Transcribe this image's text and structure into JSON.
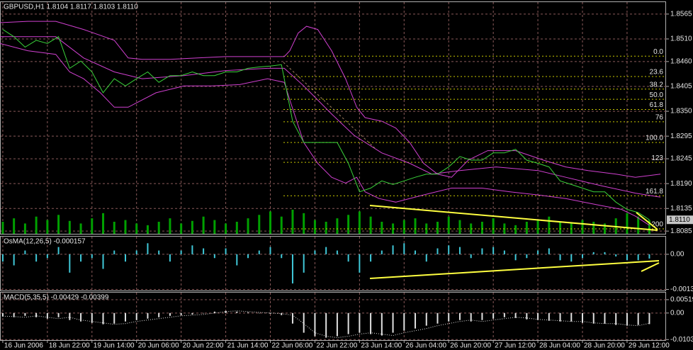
{
  "chart_data": [
    {
      "type": "line",
      "title": "GBPUSD,H1  1.8104 1.8117 1.8103 1.8110",
      "xlim": [
        0,
        239
      ],
      "xticks": [
        {
          "value": 1,
          "label": "16 Jun 2006"
        },
        {
          "value": 17,
          "label": "18 Jun 22:00"
        },
        {
          "value": 33,
          "label": "19 Jun 14:00"
        },
        {
          "value": 49,
          "label": "20 Jun 06:00"
        },
        {
          "value": 65,
          "label": "20 Jun 22:00"
        },
        {
          "value": 81,
          "label": "21 Jun 14:00"
        },
        {
          "value": 97,
          "label": "22 Jun 06:00"
        },
        {
          "value": 113,
          "label": "22 Jun 22:00"
        },
        {
          "value": 129,
          "label": "23 Jun 14:00"
        },
        {
          "value": 145,
          "label": "26 Jun 04:00"
        },
        {
          "value": 161,
          "label": "26 Jun 20:00"
        },
        {
          "value": 177,
          "label": "27 Jun 12:00"
        },
        {
          "value": 193,
          "label": "28 Jun 04:00"
        },
        {
          "value": 209,
          "label": "28 Jun 20:00"
        },
        {
          "value": 225,
          "label": "29 Jun 12:00"
        }
      ],
      "ylim": [
        1.8079,
        1.8593
      ],
      "yticks": [
        1.8565,
        {
          "value": 1.851,
          "label": "1.8510"
        },
        {
          "value": 1.846,
          "label": "1.8460"
        },
        1.8405,
        {
          "value": 1.835,
          "label": "1.8350"
        },
        1.8295,
        1.8245,
        {
          "value": 1.819,
          "label": "1.8190"
        },
        1.8135,
        1.8085
      ],
      "grid": true,
      "grid_color": "#8a5a5a",
      "x": [
        1,
        5,
        9,
        13,
        17,
        21,
        25,
        29,
        33,
        37,
        41,
        45,
        49,
        53,
        57,
        61,
        65,
        69,
        73,
        77,
        81,
        85,
        89,
        93,
        97,
        101,
        105,
        109,
        113,
        117,
        121,
        125,
        129,
        133,
        137,
        141,
        145,
        149,
        153,
        157,
        161,
        165,
        169,
        173,
        177,
        181,
        185,
        189,
        193,
        197,
        201,
        205,
        209,
        213,
        217,
        221,
        225,
        229,
        233
      ],
      "series": [
        {
          "color": "#d040d0",
          "x": [
            0,
            10,
            20,
            30,
            41,
            46,
            51,
            61,
            71,
            81,
            102,
            104,
            107,
            110,
            114,
            119,
            124,
            128,
            131,
            137,
            142,
            147,
            152,
            157,
            162,
            168,
            175,
            185,
            195,
            203,
            211,
            221,
            228,
            237
          ],
          "values": [
            1.8546,
            1.8549,
            1.8549,
            1.8531,
            1.8507,
            1.8468,
            1.8465,
            1.8465,
            1.8468,
            1.8471,
            1.8471,
            1.8484,
            1.8523,
            1.8538,
            1.8531,
            1.8484,
            1.8422,
            1.8359,
            1.8336,
            1.8328,
            1.8313,
            1.8281,
            1.8235,
            1.8211,
            1.8204,
            1.8242,
            1.8263,
            1.8263,
            1.8242,
            1.8227,
            1.8219,
            1.8211,
            1.8204,
            1.8211
          ]
        },
        {
          "color": "#d040d0",
          "x": [
            0,
            20,
            30,
            41,
            51,
            66,
            81,
            96,
            102,
            109,
            119,
            127,
            137,
            147,
            155,
            165,
            178,
            193,
            203,
            216,
            228,
            237
          ],
          "values": [
            1.8515,
            1.8515,
            1.8468,
            1.8437,
            1.8422,
            1.8429,
            1.844,
            1.8445,
            1.8445,
            1.8406,
            1.8344,
            1.8297,
            1.8258,
            1.8235,
            1.8211,
            1.8219,
            1.8227,
            1.8219,
            1.8204,
            1.8185,
            1.8169,
            1.816
          ]
        },
        {
          "color": "#d040d0",
          "x": [
            0,
            10,
            20,
            25,
            30,
            36,
            41,
            46,
            56,
            66,
            76,
            86,
            96,
            102,
            104,
            109,
            114,
            119,
            124,
            128,
            131,
            136,
            142,
            152,
            162,
            173,
            183,
            193,
            203,
            216,
            223,
            228,
            233
          ],
          "values": [
            1.85,
            1.8484,
            1.8476,
            1.8437,
            1.8422,
            1.8391,
            1.8359,
            1.8359,
            1.8391,
            1.8406,
            1.8406,
            1.8409,
            1.8422,
            1.8414,
            1.8375,
            1.8281,
            1.8235,
            1.8204,
            1.8191,
            1.8204,
            1.8172,
            1.8157,
            1.8149,
            1.8165,
            1.818,
            1.818,
            1.8172,
            1.8165,
            1.8157,
            1.8141,
            1.8133,
            1.8118,
            1.8098
          ]
        },
        {
          "color": "#3ad23a",
          "values": [
            1.8531,
            1.8515,
            1.8492,
            1.8507,
            1.85,
            1.8515,
            1.8445,
            1.8461,
            1.8437,
            1.8391,
            1.8422,
            1.8406,
            1.8422,
            1.8437,
            1.8414,
            1.8429,
            1.8429,
            1.8437,
            1.8429,
            1.8429,
            1.8437,
            1.8437,
            1.8445,
            1.8448,
            1.845,
            1.8453,
            1.8328,
            1.8281,
            1.8281,
            1.8281,
            1.8281,
            1.8235,
            1.8172,
            1.818,
            1.8196,
            1.8188,
            1.8196,
            1.8204,
            1.8211,
            1.8211,
            1.8227,
            1.825,
            1.8242,
            1.8242,
            1.8258,
            1.8258,
            1.8266,
            1.8242,
            1.8235,
            1.8227,
            1.8196,
            1.8188,
            1.818,
            1.8172,
            1.8172,
            1.8149,
            1.8133,
            1.8126,
            1.811
          ]
        }
      ],
      "volume": {
        "color": "#00a000",
        "values": [
          14,
          18,
          12,
          20,
          16,
          22,
          15,
          12,
          18,
          24,
          14,
          16,
          12,
          10,
          14,
          18,
          12,
          15,
          20,
          16,
          12,
          14,
          18,
          22,
          26,
          20,
          28,
          24,
          16,
          14,
          18,
          22,
          26,
          20,
          14,
          12,
          16,
          18,
          12,
          14,
          20,
          16,
          12,
          14,
          18,
          12,
          10,
          14,
          16,
          20,
          14,
          12,
          16,
          14,
          12,
          18,
          24,
          20,
          16
        ]
      },
      "fibonacci": {
        "color": "#c8c800",
        "price_0": 1.8472,
        "price_100": 1.8281,
        "levels": [
          {
            "value": 0,
            "label": "0.0"
          },
          23.6,
          38.2,
          {
            "value": 50,
            "label": "50.0"
          },
          61.8,
          76,
          {
            "value": 100,
            "label": "100.0"
          },
          123,
          161.8,
          200
        ]
      },
      "last_price": {
        "value": 1.811,
        "label": "1.8110"
      }
    },
    {
      "type": "bar",
      "title": "OsMA(12,26,5) -0.000157",
      "ylim": [
        -0.00134,
        0.00068
      ],
      "yticks": [
        {
          "value": 0,
          "label": "0.00"
        },
        -0.0013
      ],
      "series": [
        {
          "color": "#40c8d8",
          "values": [
            -0.00027,
            -0.00041,
            0.00014,
            -0.00027,
            -0.00014,
            0.00027,
            -0.00068,
            -0.00027,
            -0.00014,
            -0.00054,
            0.00014,
            -0.00027,
            0.00014,
            0.00041,
            0.00014,
            -0.00027,
            0.00014,
            0.00033,
            0.00022,
            -0.00014,
            0.00022,
            -0.00041,
            -0.00014,
            0.00014,
            0.00027,
            -0.00014,
            -0.00108,
            -0.00068,
            0.00014,
            0.00027,
            0.00014,
            -0.00027,
            -0.00068,
            -0.00027,
            0.00014,
            0.00033,
            0.00041,
            0.00014,
            -0.00027,
            0.00022,
            0.00033,
            0.00027,
            -0.00014,
            0.00022,
            0.00027,
            0.00014,
            -0.00022,
            -0.00014,
            0.00014,
            0.00022,
            -0.00022,
            -0.00027,
            -0.00014,
            8e-05,
            8e-05,
            -8e-05,
            -0.00022,
            -0.00022,
            -0.000157
          ]
        }
      ]
    },
    {
      "type": "bar",
      "title": "MACD(5,35,5) -0.00429 -0.00399",
      "ylim": [
        -0.0105,
        0.0082
      ],
      "yticks": [
        0.00519,
        {
          "value": 0,
          "label": "0.00"
        },
        -0.0103
      ],
      "series": [
        {
          "color": "#e0e0e0",
          "values": [
            -0.00137,
            -0.00164,
            -0.00109,
            -0.00164,
            -0.00218,
            -0.00164,
            -0.00273,
            -0.00328,
            -0.00382,
            -0.00437,
            -0.0041,
            -0.00328,
            -0.00273,
            -0.00218,
            -0.00164,
            -0.00109,
            -0.00082,
            -0.00055,
            0,
            0.00055,
            0.00082,
            0.00055,
            0.00027,
            0,
            -0.00027,
            -0.00082,
            -0.0041,
            -0.00764,
            -0.00901,
            -0.00956,
            -0.00901,
            -0.00819,
            -0.00764,
            -0.00819,
            -0.00874,
            -0.00764,
            -0.00683,
            -0.00601,
            -0.00491,
            -0.0041,
            -0.00328,
            -0.00273,
            -0.00328,
            -0.00273,
            -0.00218,
            -0.00164,
            -0.00191,
            -0.00246,
            -0.00273,
            -0.003,
            -0.00328,
            -0.00328,
            -0.00382,
            -0.0041,
            -0.0041,
            -0.00464,
            -0.00491,
            -0.00464,
            -0.00429
          ]
        },
        {
          "color": "#e0e0e0",
          "line": "dotted",
          "values": [
            -0.0012,
            -0.00137,
            -0.00164,
            -0.00109,
            -0.00164,
            -0.00218,
            -0.00164,
            -0.00273,
            -0.00328,
            -0.00382,
            -0.00437,
            -0.0041,
            -0.00328,
            -0.00273,
            -0.00218,
            -0.00164,
            -0.00109,
            -0.00082,
            -0.00055,
            0,
            0.00055,
            0.00082,
            0.00055,
            0.00027,
            0,
            -0.00027,
            -0.00082,
            -0.0041,
            -0.00764,
            -0.00901,
            -0.00956,
            -0.00901,
            -0.00819,
            -0.00764,
            -0.00819,
            -0.00874,
            -0.00764,
            -0.00683,
            -0.00601,
            -0.00491,
            -0.0041,
            -0.00328,
            -0.00273,
            -0.00328,
            -0.00273,
            -0.00218,
            -0.00164,
            -0.00191,
            -0.00246,
            -0.00273,
            -0.003,
            -0.00328,
            -0.00328,
            -0.00382,
            -0.0041,
            -0.0041,
            -0.00464,
            -0.00491,
            -0.00399
          ]
        }
      ]
    }
  ]
}
